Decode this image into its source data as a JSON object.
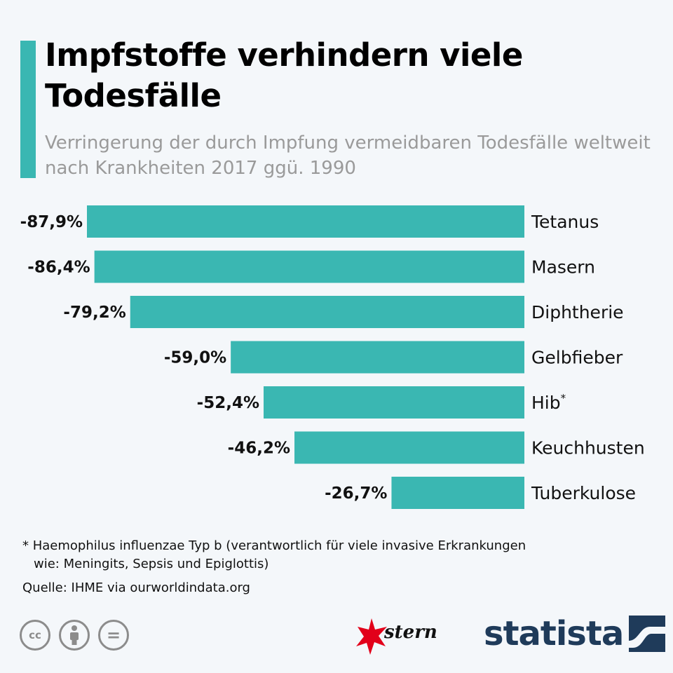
{
  "title": "Impfstoffe verhindern viele Todesfälle",
  "subtitle": "Verringerung der durch Impfung vermeidbaren Todesfälle weltweit nach Krankheiten 2017 ggü. 1990",
  "colors": {
    "accent": "#3ab7b2",
    "bar": "#3ab7b2",
    "text": "#111111",
    "subtitle": "#9a9a9a",
    "statista": "#1f3b5a",
    "stern_red": "#e2001a"
  },
  "chart_data": {
    "type": "bar",
    "orientation": "horizontal",
    "categories": [
      "Tetanus",
      "Masern",
      "Diphtherie",
      "Gelbfieber",
      "Hib",
      "Keuchhusten",
      "Tuberkulose"
    ],
    "category_superscripts": [
      "",
      "",
      "",
      "",
      "*",
      "",
      ""
    ],
    "values": [
      -87.9,
      -86.4,
      -79.2,
      -59.0,
      -52.4,
      -46.2,
      -26.7
    ],
    "value_labels": [
      "-87,9%",
      "-86,4%",
      "-79,2%",
      "-59,0%",
      "-52,4%",
      "-46,2%",
      "-26,7%"
    ],
    "unit": "%",
    "xlim": [
      -87.9,
      0
    ]
  },
  "footnote": {
    "line1": "* Haemophilus influenzae Typ b (verantwortlich für viele invasive Erkrankungen",
    "line2": "wie: Meningits, Sepsis und Epiglottis)"
  },
  "source": "Quelle: IHME via ourworldindata.org",
  "logos": {
    "stern": "stern",
    "statista": "statista"
  },
  "icons": [
    "cc-icon",
    "attribution-icon",
    "no-derivatives-icon"
  ],
  "license_glyphs": {
    "cc": "cc",
    "nd": "="
  }
}
